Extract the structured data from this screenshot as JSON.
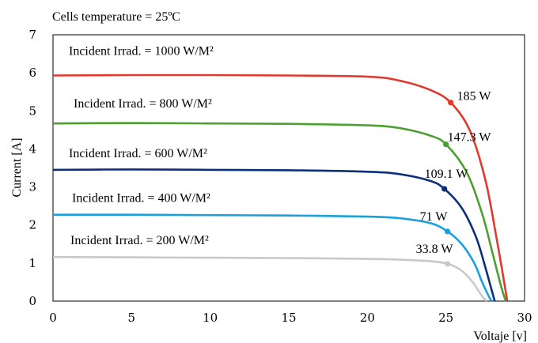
{
  "chart_data": {
    "type": "line",
    "title": "Cells temperature = 25ºC",
    "xlabel": "Voltaje [v]",
    "ylabel": "Current [A]",
    "xlim": [
      0,
      30
    ],
    "ylim": [
      0,
      7
    ],
    "xticks": [
      "0",
      "5",
      "10",
      "15",
      "20",
      "25",
      "30"
    ],
    "yticks": [
      "0",
      "1",
      "2",
      "3",
      "4",
      "5",
      "6",
      "7"
    ],
    "grid": false,
    "series": [
      {
        "name": "Incident Irrad. = 1000 W/M²",
        "color": "#e03a2e",
        "x": [
          0,
          5,
          10,
          15,
          20,
          22,
          24,
          25.3,
          26.5,
          27.5,
          28.2,
          28.7,
          28.9
        ],
        "y": [
          5.93,
          5.94,
          5.94,
          5.93,
          5.9,
          5.8,
          5.55,
          5.22,
          4.5,
          3.2,
          1.7,
          0.5,
          0
        ],
        "mpp": {
          "x": 25.3,
          "y": 5.22,
          "label": "185 W"
        }
      },
      {
        "name": "Incident Irrad. = 800 W/M²",
        "color": "#4ca030",
        "x": [
          0,
          5,
          10,
          15,
          20,
          22,
          24,
          25,
          26.3,
          27.3,
          28,
          28.5,
          28.8
        ],
        "y": [
          4.67,
          4.68,
          4.67,
          4.66,
          4.62,
          4.55,
          4.35,
          4.12,
          3.4,
          2.3,
          1.2,
          0.4,
          0
        ],
        "mpp": {
          "x": 25,
          "y": 4.12,
          "label": "147.3 W"
        }
      },
      {
        "name": "Incident Irrad. = 600 W/M²",
        "color": "#0b2f7a",
        "x": [
          0,
          5,
          10,
          15,
          20,
          22,
          24,
          24.9,
          26,
          26.9,
          27.5,
          27.9,
          28.1
        ],
        "y": [
          3.45,
          3.46,
          3.45,
          3.44,
          3.4,
          3.34,
          3.16,
          2.95,
          2.45,
          1.7,
          0.9,
          0.3,
          0
        ],
        "mpp": {
          "x": 24.9,
          "y": 2.95,
          "label": "109.1 W"
        }
      },
      {
        "name": "Incident Irrad. = 400 W/M²",
        "color": "#1aa0de",
        "x": [
          0,
          5,
          10,
          15,
          20,
          22,
          24,
          25.1,
          26,
          26.8,
          27.3,
          27.7,
          27.9
        ],
        "y": [
          2.27,
          2.27,
          2.26,
          2.25,
          2.22,
          2.18,
          2.05,
          1.83,
          1.5,
          1.0,
          0.5,
          0.15,
          0
        ],
        "mpp": {
          "x": 25.1,
          "y": 1.83,
          "label": "71 W"
        }
      },
      {
        "name": "Incident Irrad. = 200 W/M²",
        "color": "#c9c9c9",
        "x": [
          0,
          5,
          10,
          15,
          20,
          22,
          24,
          25.1,
          26,
          26.7,
          27.1,
          27.4,
          27.6
        ],
        "y": [
          1.16,
          1.15,
          1.14,
          1.13,
          1.11,
          1.09,
          1.05,
          0.98,
          0.8,
          0.5,
          0.25,
          0.08,
          0
        ],
        "mpp": {
          "x": 25.1,
          "y": 0.98,
          "label": "33.8 W"
        }
      }
    ]
  }
}
